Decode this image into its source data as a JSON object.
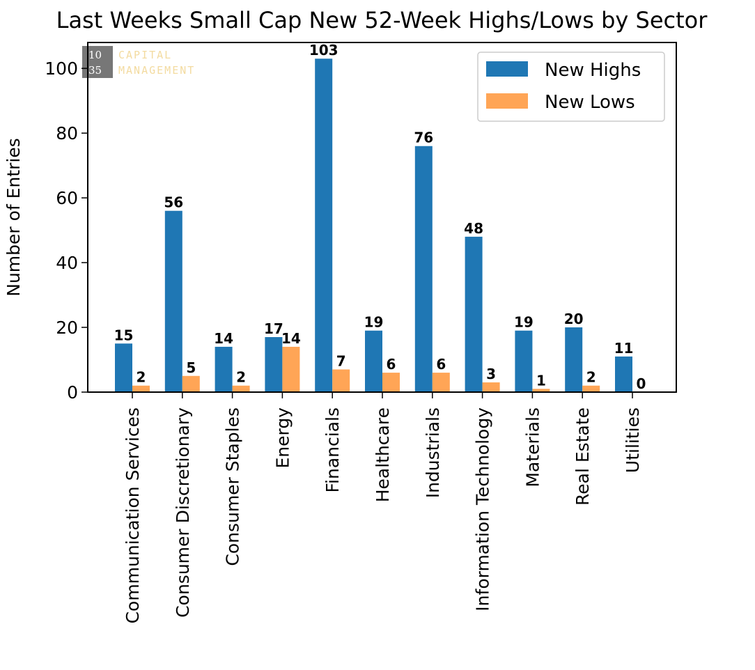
{
  "chart_data": {
    "type": "bar",
    "title": "Last Weeks Small Cap New 52-Week Highs/Lows by Sector",
    "xlabel": "",
    "ylabel": "Number of Entries",
    "ylim": [
      0,
      108
    ],
    "yticks": [
      0,
      20,
      40,
      60,
      80,
      100
    ],
    "categories": [
      "Communication Services",
      "Consumer Discretionary",
      "Consumer Staples",
      "Energy",
      "Financials",
      "Healthcare",
      "Industrials",
      "Information Technology",
      "Materials",
      "Real Estate",
      "Utilities"
    ],
    "series": [
      {
        "name": "New Highs",
        "color": "#1f77b4",
        "values": [
          15,
          56,
          14,
          17,
          103,
          19,
          76,
          48,
          19,
          20,
          11
        ]
      },
      {
        "name": "New Lows",
        "color": "#ffa556",
        "values": [
          2,
          5,
          2,
          14,
          7,
          6,
          6,
          3,
          1,
          2,
          0
        ]
      }
    ],
    "legend": "top-right",
    "grid": false
  },
  "watermark": {
    "num_top": "10",
    "num_bottom": "35",
    "line1": "CAPITAL",
    "line2": "MANAGEMENT"
  }
}
